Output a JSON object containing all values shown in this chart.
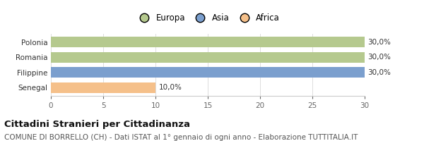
{
  "categories": [
    "Senegal",
    "Filippine",
    "Romania",
    "Polonia"
  ],
  "values": [
    10.0,
    30.0,
    30.0,
    30.0
  ],
  "bar_colors": [
    "#f5c08a",
    "#7b9fce",
    "#b5c98e",
    "#b5c98e"
  ],
  "value_labels": [
    "10,0%",
    "30,0%",
    "30,0%",
    "30,0%"
  ],
  "xlim": [
    0,
    30
  ],
  "xticks": [
    0,
    5,
    10,
    15,
    20,
    25,
    30
  ],
  "legend_items": [
    {
      "label": "Europa",
      "color": "#b5c98e"
    },
    {
      "label": "Asia",
      "color": "#7b9fce"
    },
    {
      "label": "Africa",
      "color": "#f5c08a"
    }
  ],
  "title": "Cittadini Stranieri per Cittadinanza",
  "subtitle": "COMUNE DI BORRELLO (CH) - Dati ISTAT al 1° gennaio di ogni anno - Elaborazione TUTTITALIA.IT",
  "bg_color": "#ffffff",
  "bar_height": 0.72,
  "title_fontsize": 9.5,
  "subtitle_fontsize": 7.5,
  "label_fontsize": 7.5,
  "tick_fontsize": 7.5,
  "legend_fontsize": 8.5
}
